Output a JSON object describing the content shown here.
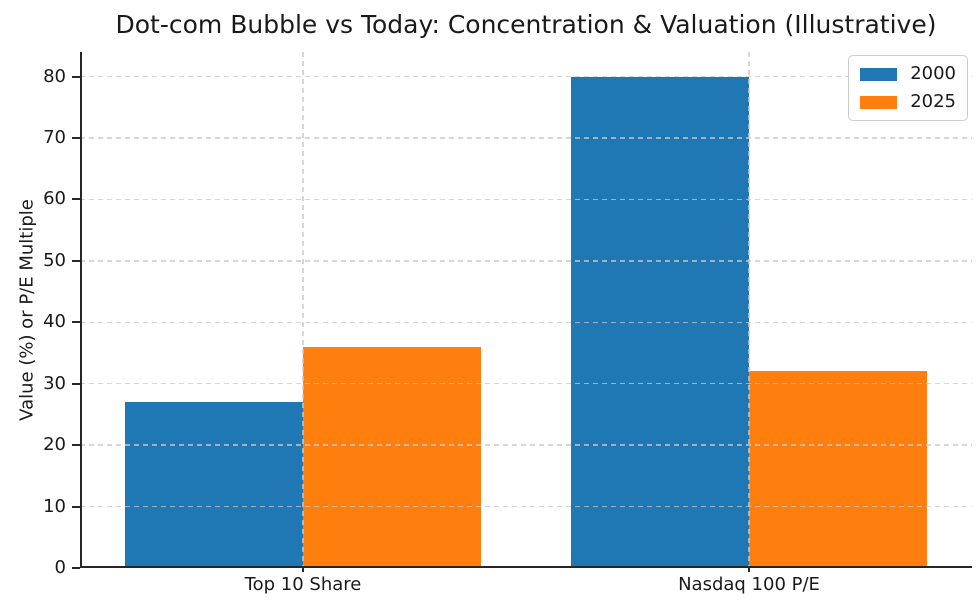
{
  "chart_data": {
    "type": "bar",
    "title": "Dot-com Bubble vs Today: Concentration & Valuation (Illustrative)",
    "categories": [
      "Top 10 Share",
      "Nasdaq 100 P/E"
    ],
    "series": [
      {
        "name": "2000",
        "color": "#1f77b4",
        "values": [
          27,
          80
        ]
      },
      {
        "name": "2025",
        "color": "#ff7f0e",
        "values": [
          36,
          32
        ]
      }
    ],
    "xlabel": "",
    "ylabel": "Value (%) or P/E Multiple",
    "ylim": [
      0,
      84
    ],
    "yticks": [
      0,
      10,
      20,
      30,
      40,
      50,
      60,
      70,
      80
    ],
    "xlim": [
      -0.5,
      1.5
    ],
    "bar_width_units": 0.4,
    "grid": true,
    "grid_style": "dashed",
    "legend": {
      "position": "upper-right",
      "entries": [
        "2000",
        "2025"
      ]
    }
  },
  "style": {
    "background": "#ffffff",
    "text_color": "#1a1a1a",
    "spine_color": "#262626",
    "grid_color": "#c8c8c8c0",
    "legend_border": "#cccccc",
    "legend_background": "#ffffff"
  }
}
